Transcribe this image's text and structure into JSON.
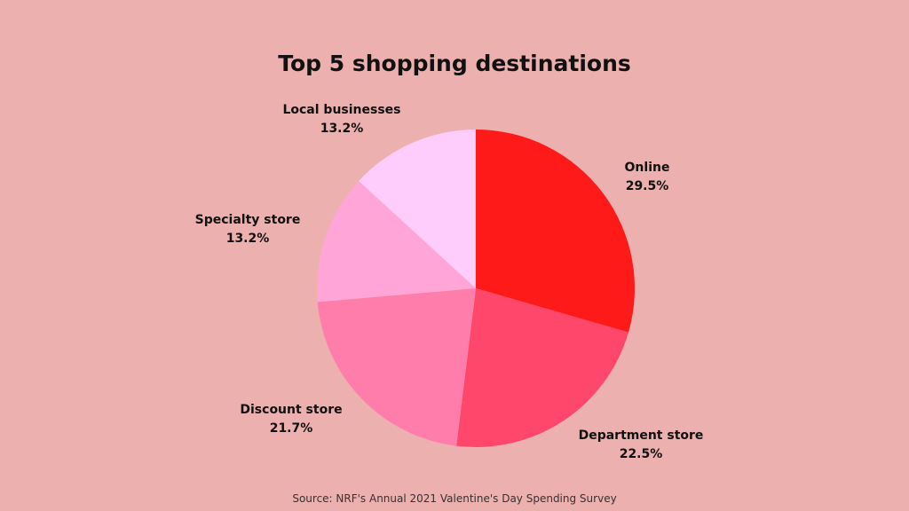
{
  "chart_data": {
    "type": "pie",
    "title": "Top 5 shopping destinations",
    "categories": [
      "Online",
      "Department store",
      "Discount store",
      "Specialty store",
      "Local businesses"
    ],
    "values": [
      29.5,
      22.5,
      21.7,
      13.2,
      13.2
    ],
    "value_labels": [
      "29.5%",
      "22.5%",
      "21.7%",
      "13.2%",
      "13.2%"
    ],
    "colors": [
      "#ff1a1a",
      "#ff476b",
      "#ff7daa",
      "#ffa5d8",
      "#ffcdfb"
    ],
    "start": "12 o'clock, clockwise",
    "legend": "none (labels beside slices)",
    "source": "Source: NRF's Annual 2021 Valentine's Day Spending Survey"
  },
  "colors": {
    "background": "#ecb0ae",
    "text": "#111111"
  }
}
